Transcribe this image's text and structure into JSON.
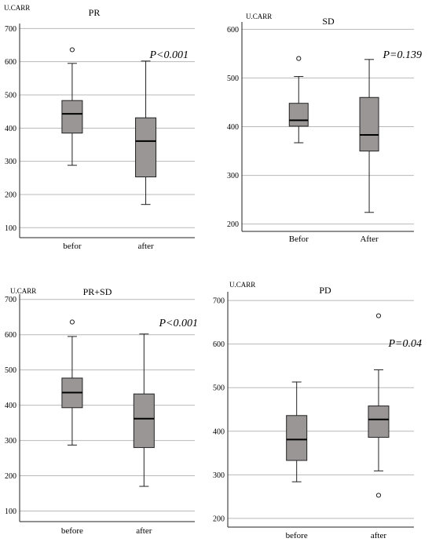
{
  "chart_data": [
    {
      "type": "box",
      "title": "PR",
      "ylabel": "U.CARR",
      "ylim": [
        70,
        715
      ],
      "yticks": [
        100,
        200,
        300,
        400,
        500,
        600,
        700
      ],
      "grid": true,
      "annotation": "P<0.001",
      "categories": [
        "befor",
        "after"
      ],
      "boxes": [
        {
          "min": 288,
          "q1": 385,
          "median": 443,
          "q3": 483,
          "max": 595,
          "outliers": [
            636
          ]
        },
        {
          "min": 170,
          "q1": 253,
          "median": 361,
          "q3": 431,
          "max": 602,
          "outliers": []
        }
      ]
    },
    {
      "type": "box",
      "title": "SD",
      "ylabel": "U.CARR",
      "ylim": [
        185,
        615
      ],
      "yticks": [
        200,
        300,
        400,
        500,
        600
      ],
      "grid": true,
      "annotation": "P=0.139",
      "categories": [
        "Befor",
        "After"
      ],
      "boxes": [
        {
          "min": 367,
          "q1": 401,
          "median": 413,
          "q3": 448,
          "max": 503,
          "outliers": [
            540
          ]
        },
        {
          "min": 224,
          "q1": 350,
          "median": 383,
          "q3": 460,
          "max": 538,
          "outliers": []
        }
      ]
    },
    {
      "type": "box",
      "title": "PR+SD",
      "ylabel": "U.CARR",
      "ylim": [
        70,
        715
      ],
      "yticks": [
        100,
        200,
        300,
        400,
        500,
        600,
        700
      ],
      "grid": true,
      "annotation": "P<0.001",
      "categories": [
        "before",
        "after"
      ],
      "boxes": [
        {
          "min": 287,
          "q1": 393,
          "median": 436,
          "q3": 477,
          "max": 595,
          "outliers": [
            636
          ]
        },
        {
          "min": 170,
          "q1": 280,
          "median": 362,
          "q3": 432,
          "max": 602,
          "outliers": []
        }
      ]
    },
    {
      "type": "box",
      "title": "PD",
      "ylabel": "U.CARR",
      "ylim": [
        180,
        720
      ],
      "yticks": [
        200,
        300,
        400,
        500,
        600,
        700
      ],
      "grid": true,
      "annotation": "P=0.04",
      "categories": [
        "before",
        "after"
      ],
      "boxes": [
        {
          "min": 284,
          "q1": 333,
          "median": 381,
          "q3": 436,
          "max": 513,
          "outliers": []
        },
        {
          "min": 309,
          "q1": 386,
          "median": 427,
          "q3": 458,
          "max": 541,
          "outliers": [
            665,
            253
          ]
        }
      ]
    }
  ]
}
